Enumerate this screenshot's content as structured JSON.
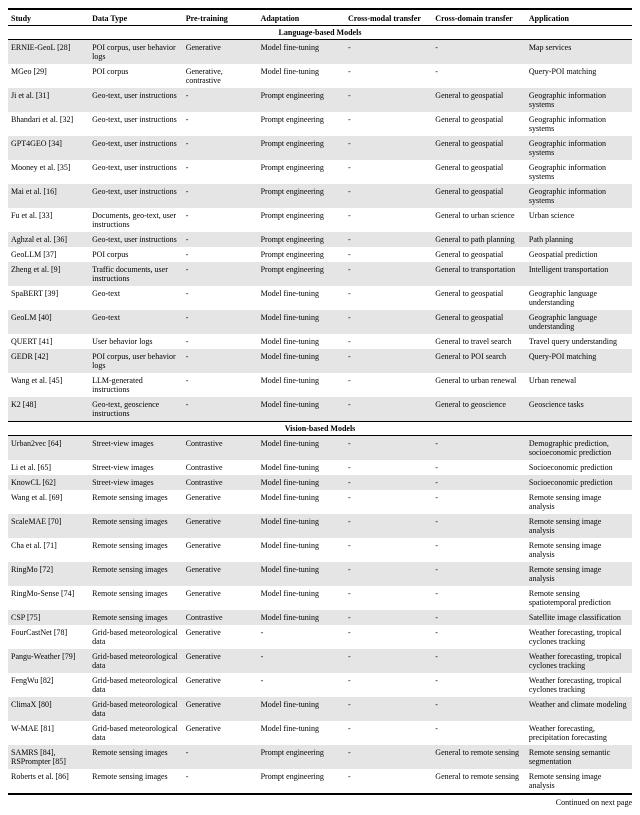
{
  "columns": [
    "Study",
    "Data Type",
    "Pre-training",
    "Adaptation",
    "Cross-modal transfer",
    "Cross-domain transfer",
    "Application"
  ],
  "sections": [
    {
      "title": "Language-based Models",
      "rows": [
        {
          "alt": true,
          "cells": [
            "ERNIE-GeoL [28]",
            "POI corpus, user behavior logs",
            "Generative",
            "Model fine-tuning",
            "-",
            "-",
            "Map services"
          ]
        },
        {
          "alt": false,
          "cells": [
            "MGeo [29]",
            "POI corpus",
            "Generative, contrastive",
            "Model fine-tuning",
            "-",
            "-",
            "Query-POI matching"
          ]
        },
        {
          "alt": true,
          "cells": [
            "Ji et al. [31]",
            "Geo-text, user instructions",
            "-",
            "Prompt engineering",
            "-",
            "General to geospatial",
            "Geographic information systems"
          ]
        },
        {
          "alt": false,
          "cells": [
            "Bhandari et al. [32]",
            "Geo-text, user instructions",
            "-",
            "Prompt engineering",
            "-",
            "General to geospatial",
            "Geographic information systems"
          ]
        },
        {
          "alt": true,
          "cells": [
            "GPT4GEO [34]",
            "Geo-text, user instructions",
            "-",
            "Prompt engineering",
            "-",
            "General to geospatial",
            "Geographic information systems"
          ]
        },
        {
          "alt": false,
          "cells": [
            "Mooney et al. [35]",
            "Geo-text, user instructions",
            "-",
            "Prompt engineering",
            "-",
            "General to geospatial",
            "Geographic information systems"
          ]
        },
        {
          "alt": true,
          "cells": [
            "Mai et al. [16]",
            "Geo-text, user instructions",
            "-",
            "Prompt engineering",
            "-",
            "General to geospatial",
            "Geographic information systems"
          ]
        },
        {
          "alt": false,
          "cells": [
            "Fu et al. [33]",
            "Documents, geo-text, user instructions",
            "-",
            "Prompt engineering",
            "-",
            "General to urban science",
            "Urban science"
          ]
        },
        {
          "alt": true,
          "cells": [
            "Aghzal et al. [36]",
            "Geo-text, user instructions",
            "-",
            "Prompt engineering",
            "-",
            "General to path planning",
            "Path planning"
          ]
        },
        {
          "alt": false,
          "cells": [
            "GeoLLM [37]",
            "POI corpus",
            "-",
            "Prompt engineering",
            "-",
            "General to geospatial",
            "Geospatial prediction"
          ]
        },
        {
          "alt": true,
          "cells": [
            "Zheng et al. [9]",
            "Traffic documents, user instructions",
            "-",
            "Prompt engineering",
            "-",
            "General to transportation",
            "Intelligent transportation"
          ]
        },
        {
          "alt": false,
          "cells": [
            "SpaBERT [39]",
            "Geo-text",
            "-",
            "Model fine-tuning",
            "-",
            "General to geospatial",
            "Geographic language understanding"
          ]
        },
        {
          "alt": true,
          "cells": [
            "GeoLM [40]",
            "Geo-text",
            "-",
            "Model fine-tuning",
            "-",
            "General to geospatial",
            "Geographic language understanding"
          ]
        },
        {
          "alt": false,
          "cells": [
            "QUERT [41]",
            "User behavior logs",
            "-",
            "Model fine-tuning",
            "-",
            "General to travel search",
            "Travel query understanding"
          ]
        },
        {
          "alt": true,
          "cells": [
            "GEDR [42]",
            "POI corpus, user behavior logs",
            "-",
            "Model fine-tuning",
            "-",
            "General to POI search",
            "Query-POI matching"
          ]
        },
        {
          "alt": false,
          "cells": [
            "Wang et al. [45]",
            "LLM-generated instructions",
            "-",
            "Model fine-tuning",
            "-",
            "General to urban renewal",
            "Urban renewal"
          ]
        },
        {
          "alt": true,
          "cells": [
            "K2 [48]",
            "Geo-text, geoscience instructions",
            "-",
            "Model fine-tuning",
            "-",
            "General to geoscience",
            "Geoscience tasks"
          ]
        }
      ]
    },
    {
      "title": "Vision-based Models",
      "rows": [
        {
          "alt": true,
          "cells": [
            "Urban2vec [64]",
            "Street-view images",
            "Contrastive",
            "Model fine-tuning",
            "-",
            "-",
            "Demographic prediction, socioeconomic prediction"
          ]
        },
        {
          "alt": false,
          "cells": [
            "Li et al. [65]",
            "Street-view images",
            "Contrastive",
            "Model fine-tuning",
            "-",
            "-",
            "Socioeconomic prediction"
          ]
        },
        {
          "alt": true,
          "cells": [
            "KnowCL [62]",
            "Street-view images",
            "Contrastive",
            "Model fine-tuning",
            "-",
            "-",
            "Socioeconomic prediction"
          ]
        },
        {
          "alt": false,
          "cells": [
            "Wang et al. [69]",
            "Remote sensing images",
            "Generative",
            "Model fine-tuning",
            "-",
            "-",
            "Remote sensing image analysis"
          ]
        },
        {
          "alt": true,
          "cells": [
            "ScaleMAE [70]",
            "Remote sensing images",
            "Generative",
            "Model fine-tuning",
            "-",
            "-",
            "Remote sensing image analysis"
          ]
        },
        {
          "alt": false,
          "cells": [
            "Cha et al. [71]",
            "Remote sensing images",
            "Generative",
            "Model fine-tuning",
            "-",
            "-",
            "Remote sensing image analysis"
          ]
        },
        {
          "alt": true,
          "cells": [
            "RingMo [72]",
            "Remote sensing images",
            "Generative",
            "Model fine-tuning",
            "-",
            "-",
            "Remote sensing image analysis"
          ]
        },
        {
          "alt": false,
          "cells": [
            "RingMo-Sense [74]",
            "Remote sensing images",
            "Generative",
            "Model fine-tuning",
            "-",
            "-",
            "Remote sensing spatiotemporal prediction"
          ]
        },
        {
          "alt": true,
          "cells": [
            "CSP [75]",
            "Remote sensing images",
            "Contrastive",
            "Model fine-tuning",
            "-",
            "-",
            "Satellite image classification"
          ]
        },
        {
          "alt": false,
          "cells": [
            "FourCastNet [78]",
            "Grid-based meteorological data",
            "Generative",
            "-",
            "-",
            "-",
            "Weather forecasting, tropical cyclones tracking"
          ]
        },
        {
          "alt": true,
          "cells": [
            "Pangu-Weather [79]",
            "Grid-based meteorological data",
            "Generative",
            "-",
            "-",
            "-",
            "Weather forecasting, tropical cyclones tracking"
          ]
        },
        {
          "alt": false,
          "cells": [
            "FengWu [82]",
            "Grid-based meteorological data",
            "Generative",
            "-",
            "-",
            "-",
            "Weather forecasting, tropical cyclones tracking"
          ]
        },
        {
          "alt": true,
          "cells": [
            "ClimaX [80]",
            "Grid-based meteorological data",
            "Generative",
            "Model fine-tuning",
            "-",
            "-",
            "Weather and climate modeling"
          ]
        },
        {
          "alt": false,
          "cells": [
            "W-MAE [81]",
            "Grid-based meteorological data",
            "Generative",
            "Model fine-tuning",
            "-",
            "-",
            "Weather forecasting, precipitation forecasting"
          ]
        },
        {
          "alt": true,
          "cells": [
            "SAMRS [84], RSPrompter [85]",
            "Remote sensing images",
            "-",
            "Prompt engineering",
            "-",
            "General to remote sensing",
            "Remote sensing semantic segmentation"
          ]
        },
        {
          "alt": false,
          "cells": [
            "Roberts et al. [86]",
            "Remote sensing images",
            "-",
            "Prompt engineering",
            "-",
            "General to remote sensing",
            "Remote sensing image analysis"
          ]
        }
      ]
    }
  ],
  "continued": "Continued on next page"
}
